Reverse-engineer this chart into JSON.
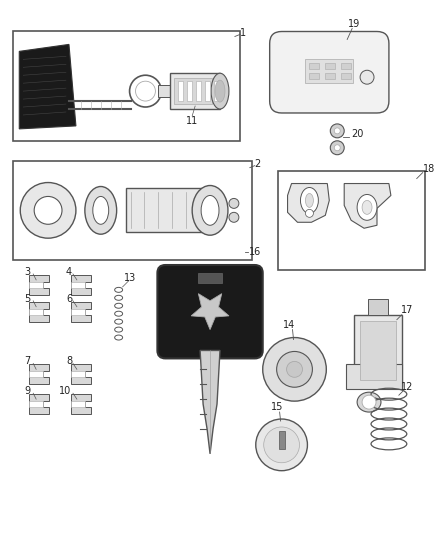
{
  "bg_color": "#ffffff",
  "fig_width": 4.38,
  "fig_height": 5.33,
  "dpi": 100,
  "gray": "#555555",
  "dgray": "#222222",
  "lgray": "#aaaaaa"
}
